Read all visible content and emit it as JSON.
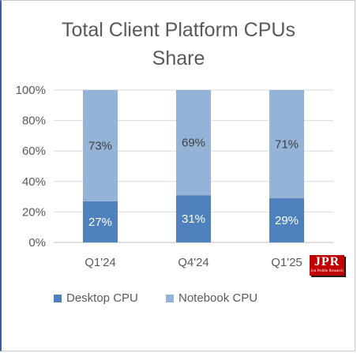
{
  "chart_data": {
    "type": "bar",
    "stacked": true,
    "title": "Total Client Platform CPUs Share",
    "title_lines": [
      "Total Client Platform CPUs",
      "Share"
    ],
    "categories": [
      "Q1'24",
      "Q4'24",
      "Q1'25"
    ],
    "series": [
      {
        "name": "Desktop CPU",
        "values": [
          27,
          31,
          29
        ],
        "labels": [
          "27%",
          "31%",
          "29%"
        ],
        "color": "#4f81bd"
      },
      {
        "name": "Notebook CPU",
        "values": [
          73,
          69,
          71
        ],
        "labels": [
          "73%",
          "69%",
          "71%"
        ],
        "color": "#95b3d7"
      }
    ],
    "y_ticks": [
      "0%",
      "20%",
      "40%",
      "60%",
      "80%",
      "100%"
    ],
    "ylim": [
      0,
      100
    ],
    "grid": true,
    "legend_position": "bottom-left"
  },
  "logo": {
    "text": "JPR",
    "subtext": "Jon Peddie Research"
  },
  "colors": {
    "gridline": "#d9d9d9",
    "axis_text": "#595959",
    "frame_accent": "#3a5f9c"
  }
}
